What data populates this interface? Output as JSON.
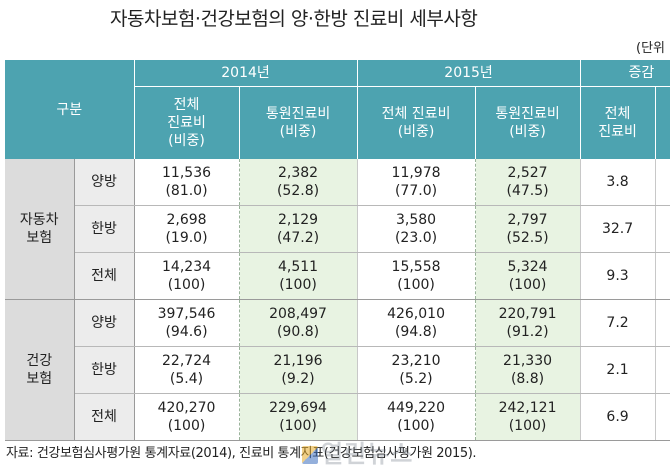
{
  "title": "자동차보험·건강보험의 양·한방 진료비 세부사항",
  "unit": "(단위",
  "header": {
    "gubun": "구분",
    "year_2014": "2014년",
    "year_2015": "2015년",
    "change": "증감",
    "sub_2014_total": [
      "전체",
      "진료비",
      "(비중)"
    ],
    "sub_2014_outpatient": [
      "통원진료비",
      "(비중)"
    ],
    "sub_2015_total": [
      "전체 진료비",
      "(비중)"
    ],
    "sub_2015_outpatient": [
      "통원진료비",
      "(비중)"
    ],
    "sub_change_total": [
      "전체",
      "진료비"
    ]
  },
  "sections": [
    {
      "category": [
        "자동차",
        "보험"
      ],
      "rows": [
        {
          "label": "양방",
          "t2014": "11,536",
          "t2014_pct": "(81.0)",
          "o2014": "2,382",
          "o2014_pct": "(52.8)",
          "t2015": "11,978",
          "t2015_pct": "(77.0)",
          "o2015": "2,527",
          "o2015_pct": "(47.5)",
          "change": "3.8"
        },
        {
          "label": "한방",
          "t2014": "2,698",
          "t2014_pct": "(19.0)",
          "o2014": "2,129",
          "o2014_pct": "(47.2)",
          "t2015": "3,580",
          "t2015_pct": "(23.0)",
          "o2015": "2,797",
          "o2015_pct": "(52.5)",
          "change": "32.7"
        },
        {
          "label": "전체",
          "t2014": "14,234",
          "t2014_pct": "(100)",
          "o2014": "4,511",
          "o2014_pct": "(100)",
          "t2015": "15,558",
          "t2015_pct": "(100)",
          "o2015": "5,324",
          "o2015_pct": "(100)",
          "change": "9.3"
        }
      ]
    },
    {
      "category": [
        "건강",
        "보험"
      ],
      "rows": [
        {
          "label": "양방",
          "t2014": "397,546",
          "t2014_pct": "(94.6)",
          "o2014": "208,497",
          "o2014_pct": "(90.8)",
          "t2015": "426,010",
          "t2015_pct": "(94.8)",
          "o2015": "220,791",
          "o2015_pct": "(91.2)",
          "change": "7.2"
        },
        {
          "label": "한방",
          "t2014": "22,724",
          "t2014_pct": "(5.4)",
          "o2014": "21,196",
          "o2014_pct": "(9.2)",
          "t2015": "23,210",
          "t2015_pct": "(5.2)",
          "o2015": "21,330",
          "o2015_pct": "(8.8)",
          "change": "2.1"
        },
        {
          "label": "전체",
          "t2014": "420,270",
          "t2014_pct": "(100)",
          "o2014": "229,694",
          "o2014_pct": "(100)",
          "t2015": "449,220",
          "t2015_pct": "(100)",
          "o2015": "242,121",
          "o2015_pct": "(100)",
          "change": "6.9"
        }
      ]
    }
  ],
  "source": "자료: 건강보험심사평가원 통계자료(2014), 진료비 통계지표(건강보험심사평가원 2015).",
  "watermark": "열린뉴스"
}
